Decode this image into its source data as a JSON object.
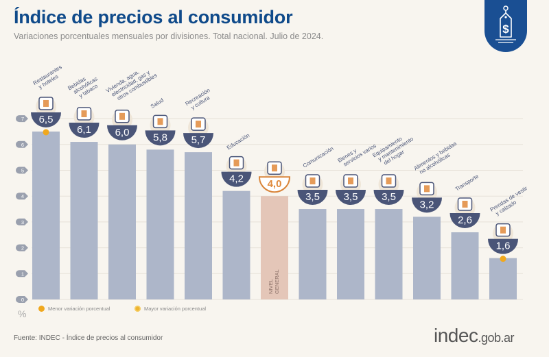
{
  "header": {
    "title": "Índice de precios al consumidor",
    "subtitle": "Variaciones porcentuales mensuales por divisiones. Total nacional. Julio de 2024.",
    "badge_icon": "price-tag-dollar-icon"
  },
  "footer": {
    "source": "Fuente: INDEC - Índice de precios al consumidor",
    "brand_main": "indec",
    "brand_suffix": ".gob.ar"
  },
  "legend": {
    "min_label": "Menor variación porcentual",
    "max_label": "Mayor variación porcentual",
    "unit": "%"
  },
  "colors": {
    "bar": "#adb6c9",
    "general_bar": "#e4c6b8",
    "bowl": "#4a5578",
    "general_value": "#e08a3c",
    "accent": "#f0a81e",
    "title": "#0f4a8a"
  },
  "chart_data": {
    "type": "bar",
    "title": "Índice de precios al consumidor",
    "subtitle": "Variaciones porcentuales mensuales por divisiones. Total nacional. Julio de 2024.",
    "xlabel": "",
    "ylabel": "%",
    "ylim": [
      0,
      7
    ],
    "yticks": [
      0,
      1,
      2,
      3,
      4,
      5,
      6,
      7
    ],
    "grid": true,
    "legend_position": "bottom-left",
    "categories": [
      "Restaurantes y hoteles",
      "Bebidas alcohólicas y tabaco",
      "Vivienda, agua, electricidad, gas y otros combustibles",
      "Salud",
      "Recreación y cultura",
      "Educación",
      "Nivel general",
      "Comunicación",
      "Bienes y servicios varios",
      "Equipamiento y mantenimiento del hogar",
      "Alimentos y bebidas no alcohólicas",
      "Transporte",
      "Prendas de vestir y calzado"
    ],
    "label_lines": [
      [
        "Restaurantes",
        "y hoteles"
      ],
      [
        "Bebidas",
        "alcohólicas",
        "y tabaco"
      ],
      [
        "Vivienda, agua,",
        "electricidad, gas y",
        "otros combustibles"
      ],
      [
        "Salud"
      ],
      [
        "Recreación",
        "y cultura"
      ],
      [
        "Educación"
      ],
      [
        "NIVEL",
        "GENERAL"
      ],
      [
        "Comunicación"
      ],
      [
        "Bienes y",
        "servicios varios"
      ],
      [
        "Equipamiento",
        "y mantenimiento",
        "del hogar"
      ],
      [
        "Alimentos y bebidas",
        "no alcohólicas"
      ],
      [
        "Transporte"
      ],
      [
        "Prendas de vestir",
        "y calzado"
      ]
    ],
    "values": [
      6.5,
      6.1,
      6.0,
      5.8,
      5.7,
      4.2,
      4.0,
      3.5,
      3.5,
      3.5,
      3.2,
      2.6,
      1.6
    ],
    "value_labels": [
      "6,5",
      "6,1",
      "6,0",
      "5,8",
      "5,7",
      "4,2",
      "4,0",
      "3,5",
      "3,5",
      "3,5",
      "3,2",
      "2,6",
      "1,6"
    ],
    "icons": [
      "restaurant-icon",
      "drinks-tobacco-icon",
      "lightbulb-tools-icon",
      "health-cross-icon",
      "recreation-umbrella-icon",
      "education-notebook-icon",
      "shopping-bag-icon",
      "smartphone-icon",
      "comb-items-icon",
      "appliance-icon",
      "food-chicken-icon",
      "bus-icon",
      "clothing-shoe-icon"
    ],
    "general_index": 6,
    "highlight_max": 0,
    "highlight_min": 12
  }
}
